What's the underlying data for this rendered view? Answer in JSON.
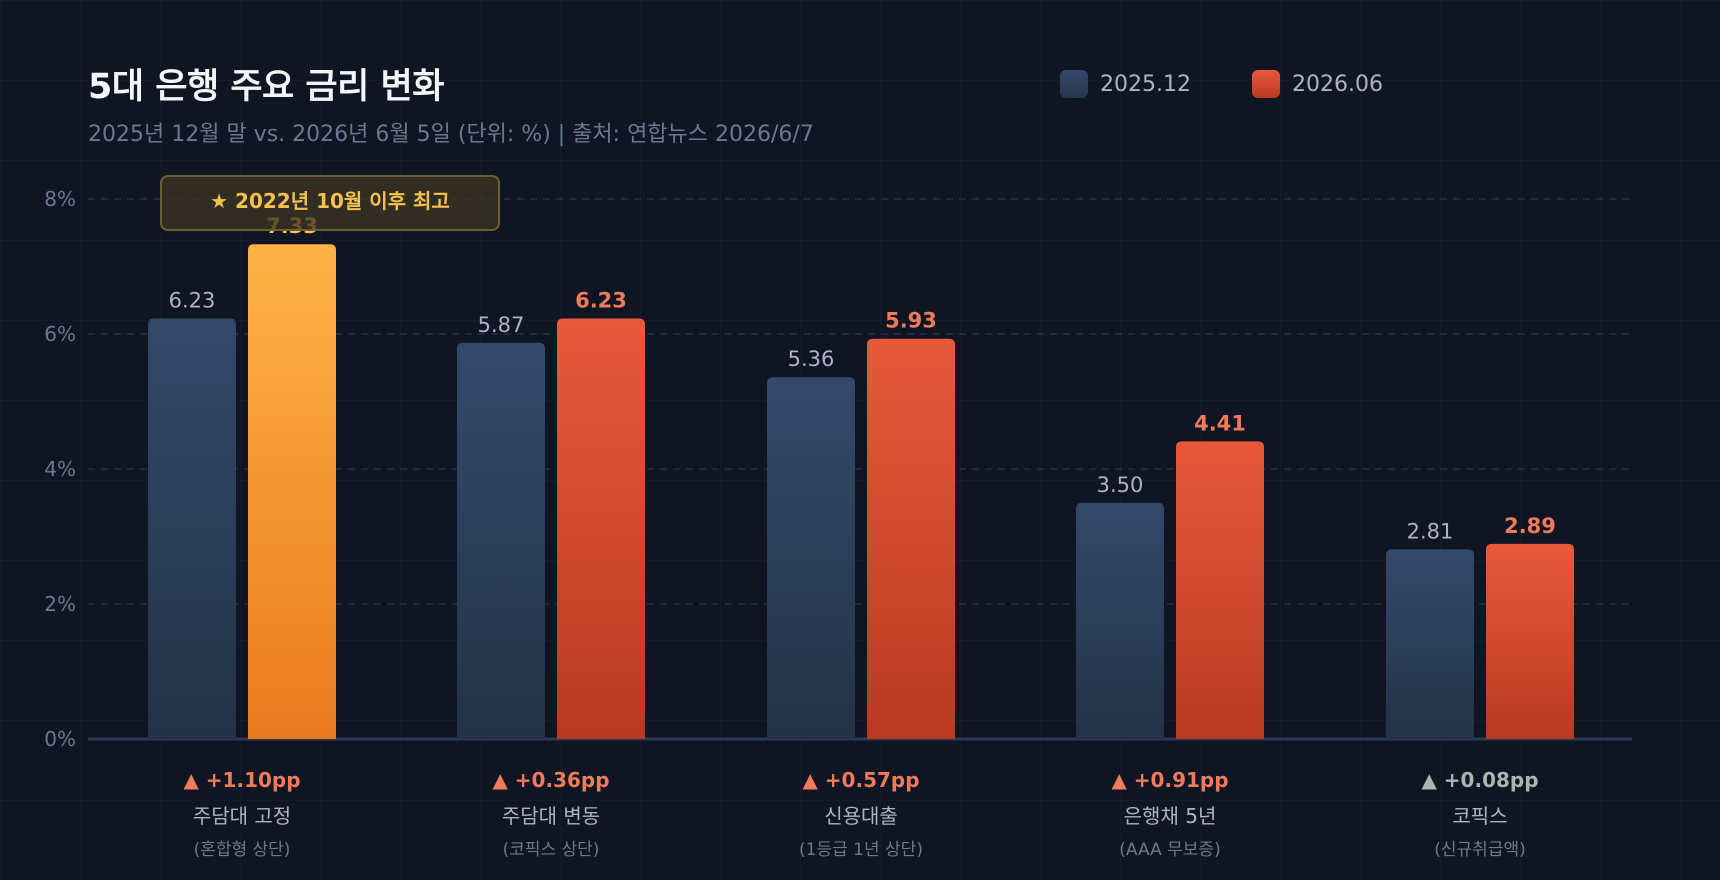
{
  "title": "5대 은행 주요 금리 변화",
  "subtitle": "2025년 12월 말 vs. 2026년 6월 5일 (단위: %) | 출처: 연합뉴스 2026/6/7",
  "legend": [
    {
      "label": "2025.12",
      "color": "#2e4262"
    },
    {
      "label": "2026.06",
      "color": "#d9482c"
    }
  ],
  "callout": "★ 2022년 10월 이후 최고",
  "colors": {
    "old_bar": "#2e4262",
    "new_bar": "#d9482c",
    "highlight_bar": "#f6a435",
    "delta_up": "#f07a5a",
    "delta_small": "#a8b5b0"
  },
  "chart_data": {
    "type": "bar",
    "title": "5대 은행 주요 금리 변화",
    "categories": [
      "주담대 고정",
      "주담대 변동",
      "신용대출",
      "은행채 5년",
      "코픽스"
    ],
    "category_notes": [
      "(혼합형 상단)",
      "(코픽스 상단)",
      "(1등급 1년 상단)",
      "(AAA 무보증)",
      "(신규취급액)"
    ],
    "series": [
      {
        "name": "2025.12",
        "values": [
          6.23,
          5.87,
          5.36,
          3.5,
          2.81
        ],
        "labels": [
          "6.23",
          "5.87",
          "5.36",
          "3.50",
          "2.81"
        ]
      },
      {
        "name": "2026.06",
        "values": [
          7.33,
          6.23,
          5.93,
          4.41,
          2.89
        ],
        "labels": [
          "7.33",
          "6.23",
          "5.93",
          "4.41",
          "2.89"
        ]
      }
    ],
    "changes": [
      "▲ +1.10pp",
      "▲ +0.36pp",
      "▲ +0.57pp",
      "▲ +0.91pp",
      "▲ +0.08pp"
    ],
    "highlight_index": 0,
    "yticks": [
      "0%",
      "2%",
      "4%",
      "6%",
      "8%"
    ],
    "ylim": [
      0,
      8
    ],
    "grid": true,
    "legend_position": "top-right"
  }
}
